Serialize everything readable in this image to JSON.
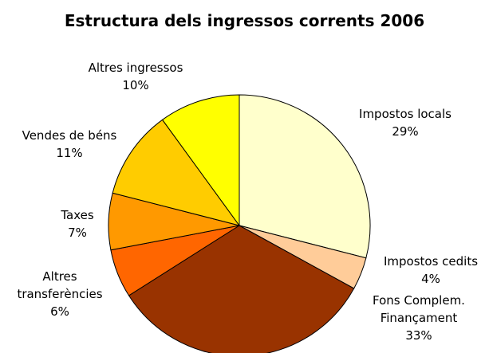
{
  "chart_data": {
    "type": "pie",
    "title": "Estructura dels ingressos corrents 2006",
    "categories": [
      "Impostos locals",
      "Impostos cedits",
      "Fons Complem. Finançament",
      "Altres transferències",
      "Taxes",
      "Vendes de béns",
      "Altres ingressos"
    ],
    "values": [
      29,
      4,
      33,
      6,
      7,
      11,
      10
    ],
    "value_labels": [
      "29%",
      "4%",
      "33%",
      "6%",
      "7%",
      "11%",
      "10%"
    ],
    "colors": [
      "#FFFFCC",
      "#FFCC99",
      "#993300",
      "#FF6600",
      "#FF9900",
      "#FFCC00",
      "#FFFF00"
    ]
  }
}
